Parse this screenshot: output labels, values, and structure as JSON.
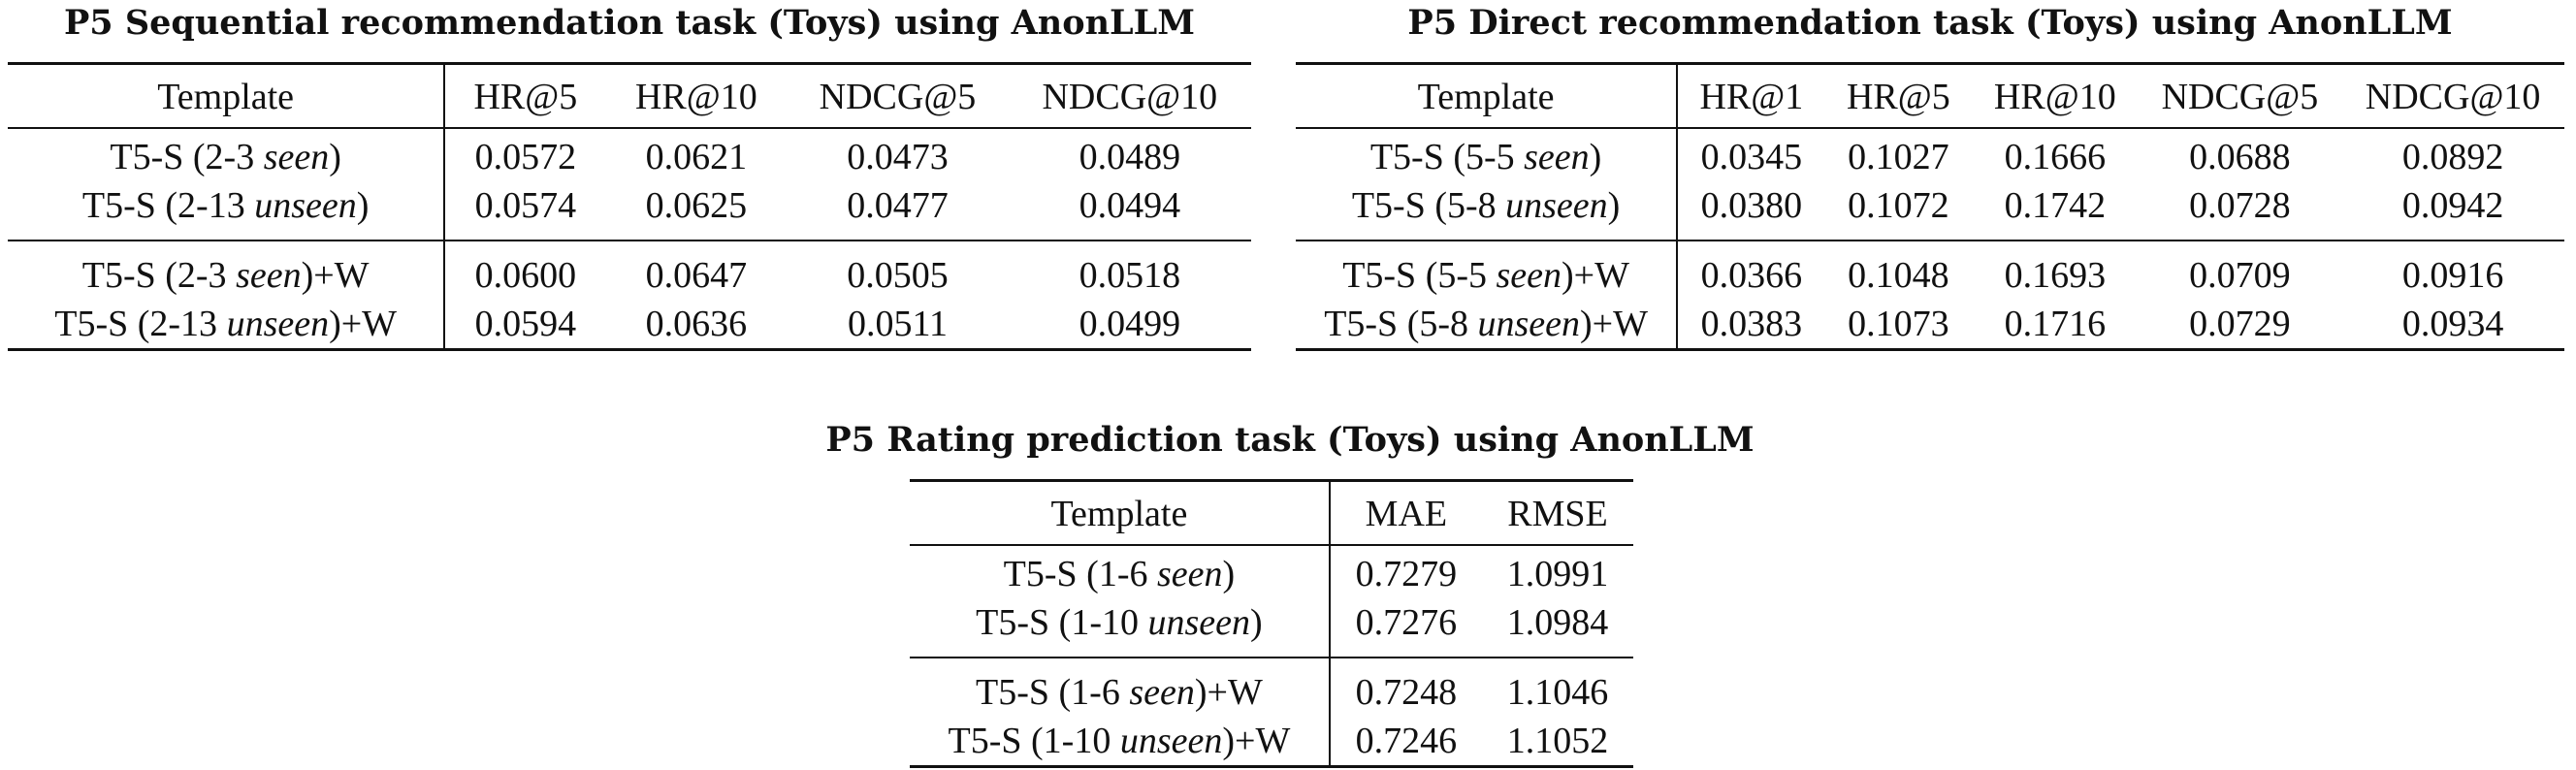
{
  "tables": {
    "sequential": {
      "title": "P5 Sequential recommendation task (Toys) using AnonLLM",
      "headers": [
        "Template",
        "HR@5",
        "HR@10",
        "NDCG@5",
        "NDCG@10"
      ],
      "rows": [
        {
          "prefix": "T5-S (2-3 ",
          "em": "seen",
          "suffix": ")",
          "values": [
            "0.0572",
            "0.0621",
            "0.0473",
            "0.0489"
          ]
        },
        {
          "prefix": "T5-S (2-13 ",
          "em": "unseen",
          "suffix": ")",
          "values": [
            "0.0574",
            "0.0625",
            "0.0477",
            "0.0494"
          ]
        },
        {
          "prefix": "T5-S (2-3 ",
          "em": "seen",
          "suffix": ")+W",
          "values": [
            "0.0600",
            "0.0647",
            "0.0505",
            "0.0518"
          ]
        },
        {
          "prefix": "T5-S (2-13 ",
          "em": "unseen",
          "suffix": ")+W",
          "values": [
            "0.0594",
            "0.0636",
            "0.0511",
            "0.0499"
          ]
        }
      ]
    },
    "direct": {
      "title": "P5 Direct recommendation task (Toys) using AnonLLM",
      "headers": [
        "Template",
        "HR@1",
        "HR@5",
        "HR@10",
        "NDCG@5",
        "NDCG@10"
      ],
      "rows": [
        {
          "prefix": "T5-S (5-5 ",
          "em": "seen",
          "suffix": ")",
          "values": [
            "0.0345",
            "0.1027",
            "0.1666",
            "0.0688",
            "0.0892"
          ]
        },
        {
          "prefix": "T5-S (5-8 ",
          "em": "unseen",
          "suffix": ")",
          "values": [
            "0.0380",
            "0.1072",
            "0.1742",
            "0.0728",
            "0.0942"
          ]
        },
        {
          "prefix": "T5-S (5-5 ",
          "em": "seen",
          "suffix": ")+W",
          "values": [
            "0.0366",
            "0.1048",
            "0.1693",
            "0.0709",
            "0.0916"
          ]
        },
        {
          "prefix": "T5-S (5-8 ",
          "em": "unseen",
          "suffix": ")+W",
          "values": [
            "0.0383",
            "0.1073",
            "0.1716",
            "0.0729",
            "0.0934"
          ]
        }
      ]
    },
    "rating": {
      "title": "P5 Rating prediction task (Toys) using AnonLLM",
      "headers": [
        "Template",
        "MAE",
        "RMSE"
      ],
      "rows": [
        {
          "prefix": "T5-S (1-6 ",
          "em": "seen",
          "suffix": ")",
          "values": [
            "0.7279",
            "1.0991"
          ]
        },
        {
          "prefix": "T5-S (1-10 ",
          "em": "unseen",
          "suffix": ")",
          "values": [
            "0.7276",
            "1.0984"
          ]
        },
        {
          "prefix": "T5-S (1-6 ",
          "em": "seen",
          "suffix": ")+W",
          "values": [
            "0.7248",
            "1.1046"
          ]
        },
        {
          "prefix": "T5-S (1-10 ",
          "em": "unseen",
          "suffix": ")+W",
          "values": [
            "0.7246",
            "1.1052"
          ]
        }
      ]
    }
  }
}
